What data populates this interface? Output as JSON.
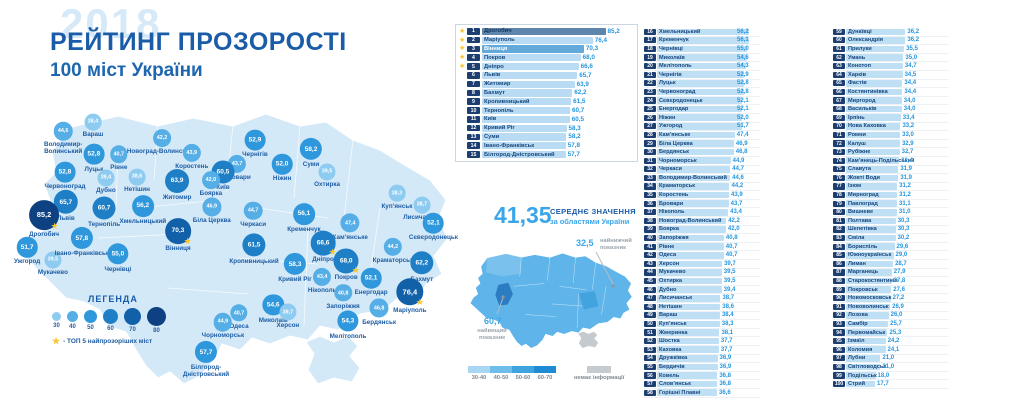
{
  "title": {
    "year_watermark": "2018",
    "heading": "РЕЙТИНГ ПРОЗОРОСТІ",
    "subheading": "100 міст України"
  },
  "map_legend": {
    "heading": "ЛЕГЕНДА",
    "ticks": [
      "30",
      "40",
      "50",
      "60",
      "70",
      "80"
    ],
    "star_note": "- ТОП 5 найпрозоріших міст"
  },
  "average_panel": {
    "value": "41,35",
    "label_line1": "СЕРЕДНЄ ЗНАЧЕННЯ",
    "label_line2": "за областями України",
    "lowest": {
      "value": "32,5",
      "label": "найнижчий показник"
    },
    "highest": {
      "value": "60,7",
      "label": "найвищий показник"
    },
    "scale": [
      {
        "label": "30-40",
        "color": "#a9d7f3"
      },
      {
        "label": "40-50",
        "color": "#6fbdeb"
      },
      {
        "label": "50-60",
        "color": "#3fa3e0"
      },
      {
        "label": "60-70",
        "color": "#1f8bd2"
      }
    ],
    "no_data": {
      "label": "немає інформації",
      "color": "#c6cbd0"
    }
  },
  "colors": {
    "accent": "#1b5ca8",
    "light_accent": "#3aa6e8",
    "value_text": "#2496e0",
    "badge": "#1c3e70",
    "star": "#f7c52e",
    "land": "#d3e9f8",
    "bar_fill": "#bfdff4",
    "top15_bar_default": "#b9dcf4",
    "top15_overrides": {
      "1": {
        "bar": "#5e85ac",
        "name": "#10355e"
      },
      "3": {
        "bar": "#63a9da",
        "name": "#ffffff"
      }
    },
    "buckets": [
      {
        "max": 40,
        "color": "#8ecbf0"
      },
      {
        "max": 50,
        "color": "#55aee6"
      },
      {
        "max": 60,
        "color": "#2f97dc"
      },
      {
        "max": 70,
        "color": "#1f7fc6"
      },
      {
        "max": 80,
        "color": "#1160a8"
      },
      {
        "max": 101,
        "color": "#0d4181"
      }
    ]
  },
  "chart_data": {
    "type": "bar",
    "title": "Рейтинг прозорості 100 міст України, 2018",
    "value_range": [
      0,
      100
    ],
    "top_starred_count": 5,
    "legend_position": "bottom-left",
    "ranking": [
      {
        "rank": 1,
        "city": "Дрогобич",
        "score": "85,2"
      },
      {
        "rank": 2,
        "city": "Маріуполь",
        "score": "76,4"
      },
      {
        "rank": 3,
        "city": "Вінниця",
        "score": "70,3"
      },
      {
        "rank": 4,
        "city": "Покров",
        "score": "68,0"
      },
      {
        "rank": 5,
        "city": "Дніпро",
        "score": "66,6"
      },
      {
        "rank": 6,
        "city": "Львів",
        "score": "65,7"
      },
      {
        "rank": 7,
        "city": "Житомир",
        "score": "63,9"
      },
      {
        "rank": 8,
        "city": "Бахмут",
        "score": "62,2"
      },
      {
        "rank": 9,
        "city": "Кропивницький",
        "score": "61,5"
      },
      {
        "rank": 10,
        "city": "Тернопіль",
        "score": "60,7"
      },
      {
        "rank": 11,
        "city": "Київ",
        "score": "60,5"
      },
      {
        "rank": 12,
        "city": "Кривий Ріг",
        "score": "58,3"
      },
      {
        "rank": 13,
        "city": "Суми",
        "score": "58,2"
      },
      {
        "rank": 14,
        "city": "Івано-Франківськ",
        "score": "57,8"
      },
      {
        "rank": 15,
        "city": "Білгород-Дністровський",
        "score": "57,7"
      },
      {
        "rank": 16,
        "city": "Хмельницький",
        "score": "56,2"
      },
      {
        "rank": 17,
        "city": "Кременчук",
        "score": "56,1"
      },
      {
        "rank": 18,
        "city": "Чернівці",
        "score": "55,0"
      },
      {
        "rank": 19,
        "city": "Миколаїв",
        "score": "54,6"
      },
      {
        "rank": 20,
        "city": "Мелітополь",
        "score": "54,3"
      },
      {
        "rank": 21,
        "city": "Чернігів",
        "score": "52,9"
      },
      {
        "rank": 22,
        "city": "Луцьк",
        "score": "52,8"
      },
      {
        "rank": 23,
        "city": "Червоноград",
        "score": "52,8"
      },
      {
        "rank": 24,
        "city": "Сєвєродонецьк",
        "score": "52,1"
      },
      {
        "rank": 25,
        "city": "Енергодар",
        "score": "52,1"
      },
      {
        "rank": 26,
        "city": "Ніжин",
        "score": "52,0"
      },
      {
        "rank": 27,
        "city": "Ужгород",
        "score": "51,7"
      },
      {
        "rank": 28,
        "city": "Кам’янське",
        "score": "47,4"
      },
      {
        "rank": 29,
        "city": "Біла Церква",
        "score": "46,9"
      },
      {
        "rank": 30,
        "city": "Бердянськ",
        "score": "46,8"
      },
      {
        "rank": 31,
        "city": "Чорноморськ",
        "score": "44,9"
      },
      {
        "rank": 32,
        "city": "Черкаси",
        "score": "44,7"
      },
      {
        "rank": 33,
        "city": "Володимир-Волинський",
        "score": "44,6"
      },
      {
        "rank": 34,
        "city": "Краматорськ",
        "score": "44,2"
      },
      {
        "rank": 35,
        "city": "Коростень",
        "score": "43,9"
      },
      {
        "rank": 36,
        "city": "Бровари",
        "score": "43,7"
      },
      {
        "rank": 37,
        "city": "Нікополь",
        "score": "43,4"
      },
      {
        "rank": 38,
        "city": "Новоград-Волинський",
        "score": "42,2"
      },
      {
        "rank": 39,
        "city": "Боярка",
        "score": "42,0"
      },
      {
        "rank": 40,
        "city": "Запоріжжя",
        "score": "40,8"
      },
      {
        "rank": 41,
        "city": "Рівне",
        "score": "40,7"
      },
      {
        "rank": 42,
        "city": "Одеса",
        "score": "40,7"
      },
      {
        "rank": 43,
        "city": "Херсон",
        "score": "39,7"
      },
      {
        "rank": 44,
        "city": "Мукачево",
        "score": "39,5"
      },
      {
        "rank": 45,
        "city": "Охтирка",
        "score": "39,5"
      },
      {
        "rank": 46,
        "city": "Дубно",
        "score": "39,4"
      },
      {
        "rank": 47,
        "city": "Лисичанськ",
        "score": "38,7"
      },
      {
        "rank": 48,
        "city": "Нетішин",
        "score": "38,6"
      },
      {
        "rank": 49,
        "city": "Вараш",
        "score": "38,4"
      },
      {
        "rank": 50,
        "city": "Куп’янськ",
        "score": "38,3"
      },
      {
        "rank": 51,
        "city": "Жмеринка",
        "score": "38,1"
      },
      {
        "rank": 52,
        "city": "Шостка",
        "score": "37,7"
      },
      {
        "rank": 53,
        "city": "Каховка",
        "score": "37,7"
      },
      {
        "rank": 54,
        "city": "Дружківка",
        "score": "36,9"
      },
      {
        "rank": 55,
        "city": "Бердичів",
        "score": "36,9"
      },
      {
        "rank": 56,
        "city": "Ковель",
        "score": "36,8"
      },
      {
        "rank": 57,
        "city": "Слов’янськ",
        "score": "36,8"
      },
      {
        "rank": 58,
        "city": "Горішні Плавні",
        "score": "36,6"
      },
      {
        "rank": 59,
        "city": "Дунаївці",
        "score": "36,2"
      },
      {
        "rank": 60,
        "city": "Олександрія",
        "score": "36,2"
      },
      {
        "rank": 61,
        "city": "Прилуки",
        "score": "35,5"
      },
      {
        "rank": 62,
        "city": "Умань",
        "score": "35,0"
      },
      {
        "rank": 63,
        "city": "Конотоп",
        "score": "34,7"
      },
      {
        "rank": 64,
        "city": "Харків",
        "score": "34,5"
      },
      {
        "rank": 65,
        "city": "Фастів",
        "score": "34,4"
      },
      {
        "rank": 66,
        "city": "Костянтинівка",
        "score": "34,4"
      },
      {
        "rank": 67,
        "city": "Миргород",
        "score": "34,0"
      },
      {
        "rank": 68,
        "city": "Васильків",
        "score": "34,0"
      },
      {
        "rank": 69,
        "city": "Ірпінь",
        "score": "33,4"
      },
      {
        "rank": 70,
        "city": "Нова Каховка",
        "score": "33,2"
      },
      {
        "rank": 71,
        "city": "Ромни",
        "score": "33,0"
      },
      {
        "rank": 72,
        "city": "Калуш",
        "score": "32,9"
      },
      {
        "rank": 73,
        "city": "Рубіжне",
        "score": "32,7"
      },
      {
        "rank": 74,
        "city": "Кам’янець-Подільський",
        "score": "32,4"
      },
      {
        "rank": 75,
        "city": "Славута",
        "score": "31,9"
      },
      {
        "rank": 76,
        "city": "Жовті Води",
        "score": "31,9"
      },
      {
        "rank": 77,
        "city": "Ізюм",
        "score": "31,2"
      },
      {
        "rank": 78,
        "city": "Мирноград",
        "score": "31,2"
      },
      {
        "rank": 79,
        "city": "Павлоград",
        "score": "31,1"
      },
      {
        "rank": 80,
        "city": "Вишневе",
        "score": "31,0"
      },
      {
        "rank": 81,
        "city": "Полтава",
        "score": "30,3"
      },
      {
        "rank": 82,
        "city": "Шепетівка",
        "score": "30,3"
      },
      {
        "rank": 83,
        "city": "Сміла",
        "score": "30,2"
      },
      {
        "rank": 84,
        "city": "Бориспіль",
        "score": "29,6"
      },
      {
        "rank": 85,
        "city": "Южноукраїнськ",
        "score": "29,0"
      },
      {
        "rank": 86,
        "city": "Лиман",
        "score": "28,7"
      },
      {
        "rank": 87,
        "city": "Марганець",
        "score": "27,9"
      },
      {
        "rank": 88,
        "city": "Старокостянтинів",
        "score": "27,8"
      },
      {
        "rank": 89,
        "city": "Покровськ",
        "score": "27,6"
      },
      {
        "rank": 90,
        "city": "Новомосковськ",
        "score": "27,2"
      },
      {
        "rank": 91,
        "city": "Нововолинськ",
        "score": "26,9"
      },
      {
        "rank": 92,
        "city": "Лозова",
        "score": "26,0"
      },
      {
        "rank": 93,
        "city": "Самбір",
        "score": "25,7"
      },
      {
        "rank": 94,
        "city": "Первомайськ",
        "score": "25,3"
      },
      {
        "rank": 95,
        "city": "Ізмаїл",
        "score": "24,2"
      },
      {
        "rank": 96,
        "city": "Коломия",
        "score": "24,1"
      },
      {
        "rank": 97,
        "city": "Лубни",
        "score": "21,0"
      },
      {
        "rank": 98,
        "city": "Світловодськ",
        "score": "21,0"
      },
      {
        "rank": 99,
        "city": "Подільськ",
        "score": "18,0"
      },
      {
        "rank": 100,
        "city": "Стрий",
        "score": "17,7"
      }
    ],
    "bubbles": [
      {
        "city": "Вараш",
        "score": "38,4",
        "x": 19.1,
        "y": 10.9
      },
      {
        "city": "Володимир-Волинський",
        "score": "44,6",
        "x": 12.4,
        "y": 13.8
      },
      {
        "city": "Луцьк",
        "score": "52,8",
        "x": 19.3,
        "y": 21.2
      },
      {
        "city": "Рівне",
        "score": "40,7",
        "x": 24.9,
        "y": 21.2
      },
      {
        "city": "Новоград-Волинський",
        "score": "42,2",
        "x": 34.6,
        "y": 16.0
      },
      {
        "city": "Коростень",
        "score": "43,9",
        "x": 41.3,
        "y": 20.8
      },
      {
        "city": "Чернігів",
        "score": "52,9",
        "x": 55.5,
        "y": 16.7
      },
      {
        "city": "Суми",
        "score": "58,2",
        "x": 68.1,
        "y": 19.6
      },
      {
        "city": "Ніжин",
        "score": "52,0",
        "x": 61.6,
        "y": 24.4
      },
      {
        "city": "Охтирка",
        "score": "39,5",
        "x": 71.7,
        "y": 26.9
      },
      {
        "city": "Червоноград",
        "score": "52,8",
        "x": 12.8,
        "y": 26.9
      },
      {
        "city": "Дубно",
        "score": "39,4",
        "x": 22.0,
        "y": 28.8
      },
      {
        "city": "Нетішин",
        "score": "38,6",
        "x": 29.0,
        "y": 28.5
      },
      {
        "city": "Бровари",
        "score": "43,7",
        "x": 51.5,
        "y": 24.4
      },
      {
        "city": "Київ",
        "score": "60,5",
        "x": 48.3,
        "y": 26.9
      },
      {
        "city": "Боярка",
        "score": "42,0",
        "x": 45.6,
        "y": 29.5
      },
      {
        "city": "Житомир",
        "score": "63,9",
        "x": 38.0,
        "y": 29.8
      },
      {
        "city": "Львів",
        "score": "65,7",
        "x": 13.0,
        "y": 36.5
      },
      {
        "city": "Дрогобич",
        "score": "85,2",
        "x": 8.1,
        "y": 40.7,
        "star": true
      },
      {
        "city": "Тернопіль",
        "score": "60,7",
        "x": 21.6,
        "y": 38.5
      },
      {
        "city": "Хмельницький",
        "score": "56,2",
        "x": 30.3,
        "y": 37.8
      },
      {
        "city": "Ужгород",
        "score": "51,7",
        "x": 4.3,
        "y": 51.0
      },
      {
        "city": "Мукачево",
        "score": "39,5",
        "x": 10.1,
        "y": 55.1
      },
      {
        "city": "Івано-Франківськ",
        "score": "57,8",
        "x": 16.6,
        "y": 48.1
      },
      {
        "city": "Чернівці",
        "score": "55,0",
        "x": 24.7,
        "y": 53.2
      },
      {
        "city": "Вінниця",
        "score": "70,3",
        "x": 38.2,
        "y": 45.8,
        "star": true
      },
      {
        "city": "Біла Церква",
        "score": "46,9",
        "x": 45.8,
        "y": 38.1
      },
      {
        "city": "Черкаси",
        "score": "44,7",
        "x": 55.1,
        "y": 39.4
      },
      {
        "city": "Кременчук",
        "score": "56,1",
        "x": 66.5,
        "y": 40.4
      },
      {
        "city": "Кропивницький",
        "score": "61,5",
        "x": 55.3,
        "y": 50.3
      },
      {
        "city": "Кривий Ріг",
        "score": "58,3",
        "x": 64.5,
        "y": 56.4
      },
      {
        "city": "Кам’янське",
        "score": "47,4",
        "x": 76.9,
        "y": 43.3
      },
      {
        "city": "Дніпро",
        "score": "66,6",
        "x": 70.8,
        "y": 49.7,
        "star": true
      },
      {
        "city": "Покров",
        "score": "68,0",
        "x": 76.0,
        "y": 55.4,
        "star": true
      },
      {
        "city": "Нікополь",
        "score": "43,4",
        "x": 70.6,
        "y": 60.6
      },
      {
        "city": "Енергодар",
        "score": "52,1",
        "x": 81.6,
        "y": 60.9
      },
      {
        "city": "Куп’янськ",
        "score": "38,3",
        "x": 87.4,
        "y": 33.7
      },
      {
        "city": "Лисичанськ",
        "score": "38,7",
        "x": 93.0,
        "y": 37.5
      },
      {
        "city": "Сєвєродонецьк",
        "score": "52,1",
        "x": 95.6,
        "y": 43.3
      },
      {
        "city": "Краматорськ",
        "score": "44,2",
        "x": 86.5,
        "y": 51.0
      },
      {
        "city": "Бахмут",
        "score": "62,2",
        "x": 93.0,
        "y": 56.1
      },
      {
        "city": "Запоріжжя",
        "score": "40,8",
        "x": 75.3,
        "y": 65.7
      },
      {
        "city": "Миколаїв",
        "score": "54,6",
        "x": 59.6,
        "y": 69.6
      },
      {
        "city": "Херсон",
        "score": "39,7",
        "x": 62.9,
        "y": 71.8
      },
      {
        "city": "Одеса",
        "score": "40,7",
        "x": 51.9,
        "y": 72.1
      },
      {
        "city": "Чорноморськ",
        "score": "44,9",
        "x": 48.3,
        "y": 75.0
      },
      {
        "city": "Білгород-Дністровський",
        "score": "57,7",
        "x": 44.5,
        "y": 84.6
      },
      {
        "city": "Мелітополь",
        "score": "54,3",
        "x": 76.4,
        "y": 74.7
      },
      {
        "city": "Бердянськ",
        "score": "46,8",
        "x": 83.4,
        "y": 70.5
      },
      {
        "city": "Маріуполь",
        "score": "76,4",
        "x": 90.3,
        "y": 65.4,
        "star": true
      }
    ]
  }
}
